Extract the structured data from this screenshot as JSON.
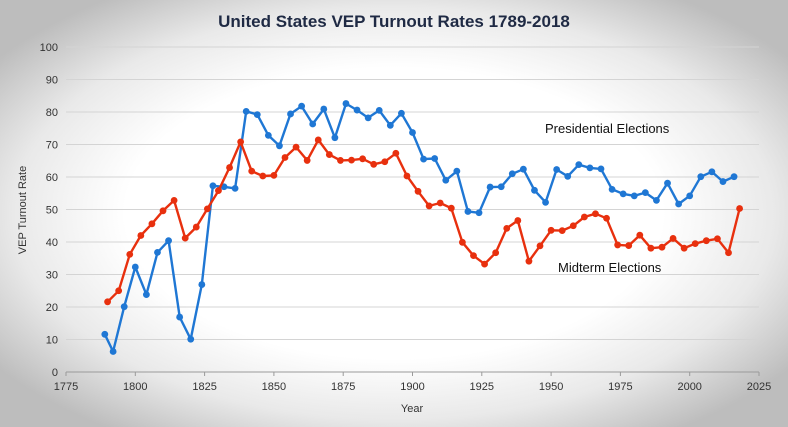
{
  "chart_data": {
    "type": "line",
    "title": "United States VEP Turnout Rates 1789-2018",
    "xlabel": "Year",
    "ylabel": "VEP Turnout Rate",
    "xlim": [
      1775,
      2025
    ],
    "ylim": [
      0,
      100
    ],
    "x_ticks": [
      "1775",
      "1800",
      "1825",
      "1850",
      "1875",
      "1900",
      "1925",
      "1950",
      "1975",
      "2000",
      "2025"
    ],
    "y_ticks": [
      "0",
      "10",
      "20",
      "30",
      "40",
      "50",
      "60",
      "70",
      "80",
      "90",
      "100"
    ],
    "grid": true,
    "series": [
      {
        "name": "Presidential Elections",
        "color": "#1f77d4",
        "points": [
          [
            1789,
            11.6
          ],
          [
            1792,
            6.3
          ],
          [
            1796,
            20.1
          ],
          [
            1800,
            32.3
          ],
          [
            1804,
            23.8
          ],
          [
            1808,
            36.8
          ],
          [
            1812,
            40.4
          ],
          [
            1816,
            16.9
          ],
          [
            1820,
            10.1
          ],
          [
            1824,
            26.9
          ],
          [
            1828,
            57.3
          ],
          [
            1832,
            57.0
          ],
          [
            1836,
            56.5
          ],
          [
            1840,
            80.2
          ],
          [
            1844,
            79.2
          ],
          [
            1848,
            72.8
          ],
          [
            1852,
            69.6
          ],
          [
            1856,
            79.4
          ],
          [
            1860,
            81.8
          ],
          [
            1864,
            76.3
          ],
          [
            1868,
            80.9
          ],
          [
            1872,
            72.1
          ],
          [
            1876,
            82.6
          ],
          [
            1880,
            80.6
          ],
          [
            1884,
            78.2
          ],
          [
            1888,
            80.5
          ],
          [
            1892,
            75.9
          ],
          [
            1896,
            79.6
          ],
          [
            1900,
            73.7
          ],
          [
            1904,
            65.5
          ],
          [
            1908,
            65.7
          ],
          [
            1912,
            59.0
          ],
          [
            1916,
            61.8
          ],
          [
            1920,
            49.4
          ],
          [
            1924,
            49.0
          ],
          [
            1928,
            56.9
          ],
          [
            1932,
            57.0
          ],
          [
            1936,
            61.0
          ],
          [
            1940,
            62.4
          ],
          [
            1944,
            55.9
          ],
          [
            1948,
            52.2
          ],
          [
            1952,
            62.3
          ],
          [
            1956,
            60.2
          ],
          [
            1960,
            63.8
          ],
          [
            1964,
            62.8
          ],
          [
            1968,
            62.5
          ],
          [
            1972,
            56.2
          ],
          [
            1976,
            54.8
          ],
          [
            1980,
            54.2
          ],
          [
            1984,
            55.2
          ],
          [
            1988,
            52.8
          ],
          [
            1992,
            58.1
          ],
          [
            1996,
            51.7
          ],
          [
            2000,
            54.2
          ],
          [
            2004,
            60.1
          ],
          [
            2008,
            61.6
          ],
          [
            2012,
            58.6
          ],
          [
            2016,
            60.1
          ]
        ]
      },
      {
        "name": "Midterm Elections",
        "color": "#e8300e",
        "points": [
          [
            1790,
            21.6
          ],
          [
            1794,
            25.0
          ],
          [
            1798,
            36.2
          ],
          [
            1802,
            42.0
          ],
          [
            1806,
            45.6
          ],
          [
            1810,
            49.6
          ],
          [
            1814,
            52.8
          ],
          [
            1818,
            41.2
          ],
          [
            1822,
            44.6
          ],
          [
            1826,
            50.2
          ],
          [
            1830,
            55.8
          ],
          [
            1834,
            62.9
          ],
          [
            1838,
            70.8
          ],
          [
            1842,
            61.8
          ],
          [
            1846,
            60.3
          ],
          [
            1850,
            60.5
          ],
          [
            1854,
            66.0
          ],
          [
            1858,
            69.2
          ],
          [
            1862,
            65.1
          ],
          [
            1866,
            71.4
          ],
          [
            1870,
            66.9
          ],
          [
            1874,
            65.1
          ],
          [
            1878,
            65.2
          ],
          [
            1882,
            65.6
          ],
          [
            1886,
            63.9
          ],
          [
            1890,
            64.7
          ],
          [
            1894,
            67.3
          ],
          [
            1898,
            60.3
          ],
          [
            1902,
            55.6
          ],
          [
            1906,
            51.1
          ],
          [
            1910,
            52.0
          ],
          [
            1914,
            50.4
          ],
          [
            1918,
            39.9
          ],
          [
            1922,
            35.8
          ],
          [
            1926,
            33.2
          ],
          [
            1930,
            36.7
          ],
          [
            1934,
            44.2
          ],
          [
            1938,
            46.6
          ],
          [
            1942,
            34.1
          ],
          [
            1946,
            38.8
          ],
          [
            1950,
            43.6
          ],
          [
            1954,
            43.5
          ],
          [
            1958,
            45.0
          ],
          [
            1962,
            47.7
          ],
          [
            1966,
            48.7
          ],
          [
            1970,
            47.3
          ],
          [
            1974,
            39.1
          ],
          [
            1978,
            38.9
          ],
          [
            1982,
            42.1
          ],
          [
            1986,
            38.1
          ],
          [
            1990,
            38.4
          ],
          [
            1994,
            41.1
          ],
          [
            1998,
            38.1
          ],
          [
            2002,
            39.5
          ],
          [
            2006,
            40.4
          ],
          [
            2010,
            41.0
          ],
          [
            2014,
            36.7
          ],
          [
            2018,
            50.3
          ]
        ]
      }
    ],
    "annotations": [
      {
        "text": "Presidential Elections",
        "series": "Presidential Elections"
      },
      {
        "text": "Midterm Elections",
        "series": "Midterm Elections"
      }
    ]
  }
}
